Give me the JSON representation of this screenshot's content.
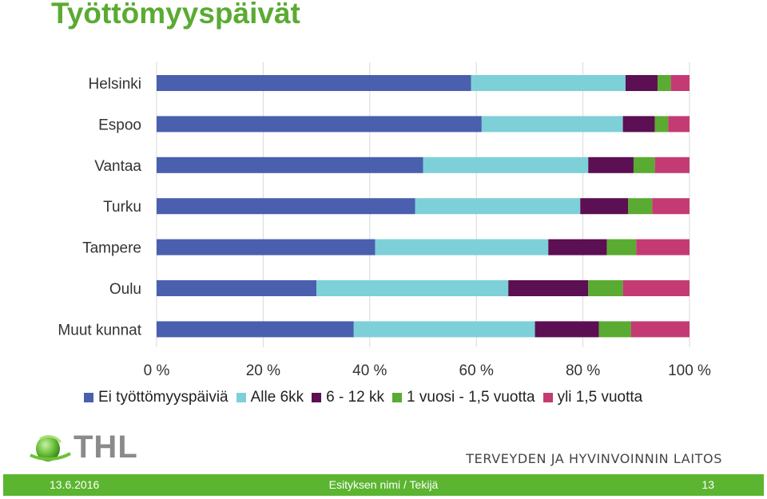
{
  "page": {
    "title": "Työttömyyspäivät"
  },
  "chart_data": {
    "type": "bar",
    "orientation": "horizontal",
    "stacked": "percent",
    "categories": [
      "Helsinki",
      "Espoo",
      "Vantaa",
      "Turku",
      "Tampere",
      "Oulu",
      "Muut kunnat"
    ],
    "series": [
      {
        "name": "Ei työttömyyspäiviä",
        "color": "#4a5fae",
        "values": [
          59,
          61,
          50,
          48.5,
          41,
          30,
          37
        ]
      },
      {
        "name": "Alle 6kk",
        "color": "#7dd0d8",
        "values": [
          29,
          26.5,
          31,
          31,
          32.5,
          36,
          34
        ]
      },
      {
        "name": "6 - 12 kk",
        "color": "#5c0f52",
        "values": [
          6,
          6,
          8.5,
          9,
          11,
          15,
          12
        ]
      },
      {
        "name": "1 vuosi - 1,5 vuotta",
        "color": "#5aab31",
        "values": [
          2.5,
          2.5,
          4,
          4.5,
          5.5,
          6.5,
          6
        ]
      },
      {
        "name": "yli 1,5 vuotta",
        "color": "#c43b73",
        "values": [
          3.5,
          4,
          6.5,
          7,
          10,
          12.5,
          11
        ]
      }
    ],
    "xlim": [
      0,
      100
    ],
    "xticks": [
      "0 %",
      "20 %",
      "40 %",
      "60 %",
      "80 %",
      "100 %"
    ],
    "grid": true,
    "legend": "bottom"
  },
  "branding": {
    "logo_text": "THL",
    "org_name": "TERVEYDEN JA HYVINVOINNIN LAITOS"
  },
  "footer": {
    "date": "13.6.2016",
    "presentation": "Esityksen nimi / Tekijä",
    "page_number": "13"
  }
}
